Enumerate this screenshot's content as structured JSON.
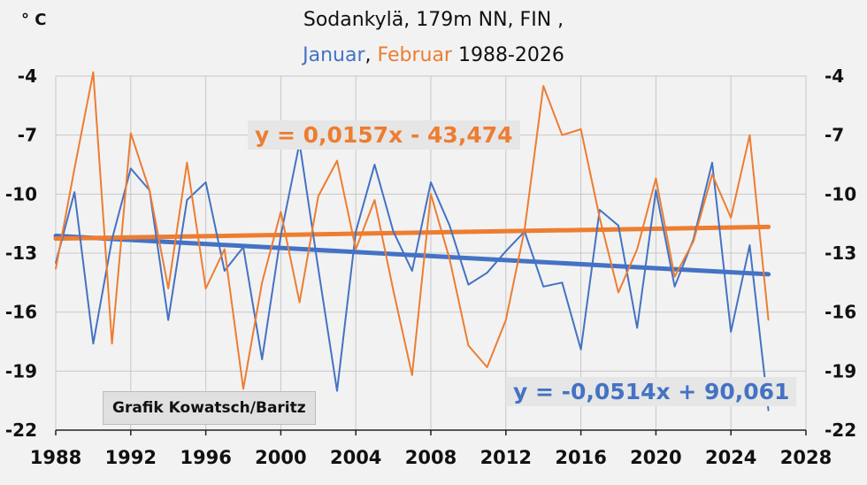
{
  "title": {
    "line1": "Sodankylä,  179m NN, FIN ,",
    "series1_label": "Januar",
    "sep": ", ",
    "series2_label": "Februar",
    "years": " 1988-2026"
  },
  "unit_label": "° C",
  "credit": "Grafik Kowatsch/Baritz",
  "colors": {
    "januar": "#4472c4",
    "februar": "#ed7d31",
    "januar_trend": "#4472c4",
    "februar_trend": "#ed7d31",
    "grid": "#c8c8c8",
    "background": "#f2f2f2"
  },
  "chart_data": {
    "type": "line",
    "xlim": [
      1988,
      2028
    ],
    "ylim": [
      -22,
      -4
    ],
    "x_ticks": [
      1988,
      1992,
      1996,
      2000,
      2004,
      2008,
      2012,
      2016,
      2020,
      2024,
      2028
    ],
    "y_ticks": [
      -4,
      -7,
      -10,
      -13,
      -16,
      -19,
      -22
    ],
    "grid": true,
    "series": [
      {
        "name": "Januar",
        "color": "#4472c4",
        "x": [
          1988,
          1989,
          1990,
          1991,
          1992,
          1993,
          1994,
          1995,
          1996,
          1997,
          1998,
          1999,
          2000,
          2001,
          2002,
          2003,
          2004,
          2005,
          2006,
          2007,
          2008,
          2009,
          2010,
          2011,
          2012,
          2013,
          2014,
          2015,
          2016,
          2017,
          2018,
          2019,
          2020,
          2021,
          2022,
          2023,
          2024,
          2025,
          2026
        ],
        "y": [
          -13.5,
          -9.9,
          -17.6,
          -12.3,
          -8.7,
          -9.8,
          -16.4,
          -10.3,
          -9.4,
          -13.9,
          -12.7,
          -18.4,
          -12.1,
          -7.4,
          -13.8,
          -20.0,
          -11.9,
          -8.5,
          -11.9,
          -13.9,
          -9.4,
          -11.6,
          -14.6,
          -14.0,
          -12.9,
          -11.9,
          -14.7,
          -14.5,
          -17.9,
          -10.8,
          -11.6,
          -16.8,
          -9.8,
          -14.7,
          -12.3,
          -8.4,
          -17.0,
          -12.6,
          -21.0
        ]
      },
      {
        "name": "Februar",
        "color": "#ed7d31",
        "x": [
          1988,
          1989,
          1990,
          1991,
          1992,
          1993,
          1994,
          1995,
          1996,
          1997,
          1998,
          1999,
          2000,
          2001,
          2002,
          2003,
          2004,
          2005,
          2006,
          2007,
          2008,
          2009,
          2010,
          2011,
          2012,
          2013,
          2014,
          2015,
          2016,
          2017,
          2018,
          2019,
          2020,
          2021,
          2022,
          2023,
          2024,
          2025,
          2026
        ],
        "y": [
          -13.8,
          -8.7,
          -3.8,
          -17.6,
          -6.9,
          -9.8,
          -14.8,
          -8.4,
          -14.8,
          -12.8,
          -19.9,
          -14.5,
          -10.9,
          -15.5,
          -10.1,
          -8.3,
          -12.8,
          -10.3,
          -14.9,
          -19.2,
          -10.0,
          -13.3,
          -17.7,
          -18.8,
          -16.4,
          -11.8,
          -4.5,
          -7.0,
          -6.7,
          -11.2,
          -15.0,
          -12.8,
          -9.2,
          -14.2,
          -12.4,
          -9.0,
          -11.2,
          -7.0,
          -16.4
        ]
      }
    ],
    "trendlines": [
      {
        "name": "Januar trend",
        "color": "#4472c4",
        "equation": "y = -0,0514x + 90,061",
        "slope": -0.0514,
        "intercept": 90.061
      },
      {
        "name": "Februar trend",
        "color": "#ed7d31",
        "equation": "y = 0,0157x - 43,474",
        "slope": 0.0157,
        "intercept": -43.474
      }
    ]
  }
}
